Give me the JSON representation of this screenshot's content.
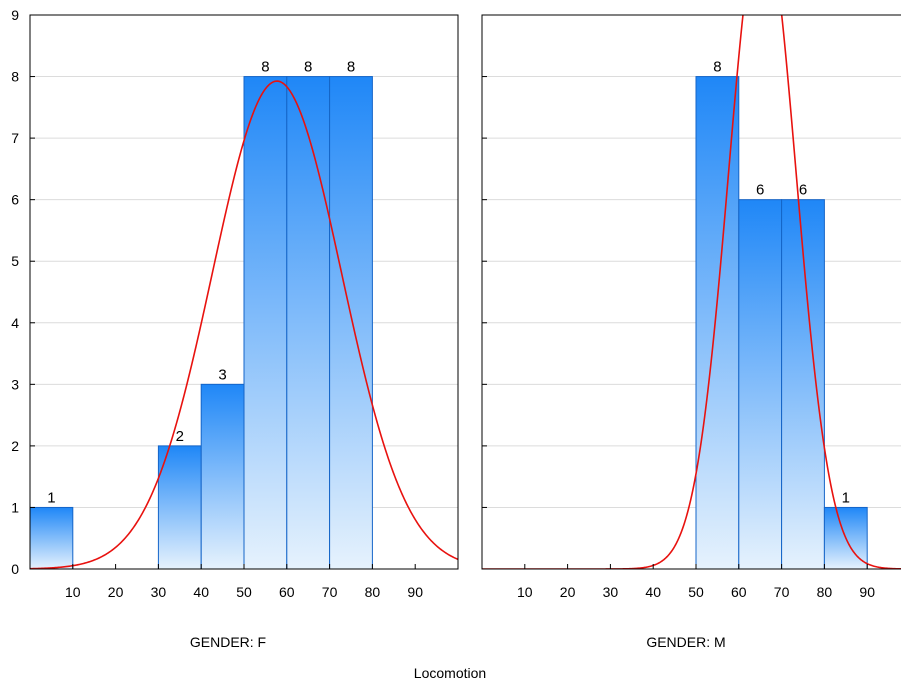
{
  "chart_data": {
    "type": "bar",
    "xlabel": "Locomotion",
    "ylim": [
      0,
      9
    ],
    "yticks": [
      0,
      1,
      2,
      3,
      4,
      5,
      6,
      7,
      8,
      9
    ],
    "xticks": [
      10,
      20,
      30,
      40,
      50,
      60,
      70,
      80,
      90
    ],
    "xlim": [
      0,
      100
    ],
    "grid": true,
    "colors": {
      "bar_top": "#1f87f7",
      "bar_bottom": "#e6f2fd",
      "bar_edge": "#1565c8",
      "curve": "#e8120f"
    },
    "panels": [
      {
        "label": "GENDER: F",
        "bins": [
          {
            "x0": 0,
            "x1": 10,
            "count": 1
          },
          {
            "x0": 30,
            "x1": 40,
            "count": 2
          },
          {
            "x0": 40,
            "x1": 50,
            "count": 3
          },
          {
            "x0": 50,
            "x1": 60,
            "count": 8
          },
          {
            "x0": 60,
            "x1": 70,
            "count": 8
          },
          {
            "x0": 70,
            "x1": 80,
            "count": 8
          }
        ],
        "normal_fit": {
          "mean": 57.7,
          "sd": 15.1,
          "n": 30,
          "bin_width": 10
        }
      },
      {
        "label": "GENDER: M",
        "bins": [
          {
            "x0": 50,
            "x1": 60,
            "count": 8
          },
          {
            "x0": 60,
            "x1": 70,
            "count": 6
          },
          {
            "x0": 70,
            "x1": 80,
            "count": 6
          },
          {
            "x0": 80,
            "x1": 90,
            "count": 1
          }
        ],
        "normal_fit": {
          "mean": 65.5,
          "sd": 7.9,
          "n": 21,
          "bin_width": 10
        }
      }
    ]
  }
}
